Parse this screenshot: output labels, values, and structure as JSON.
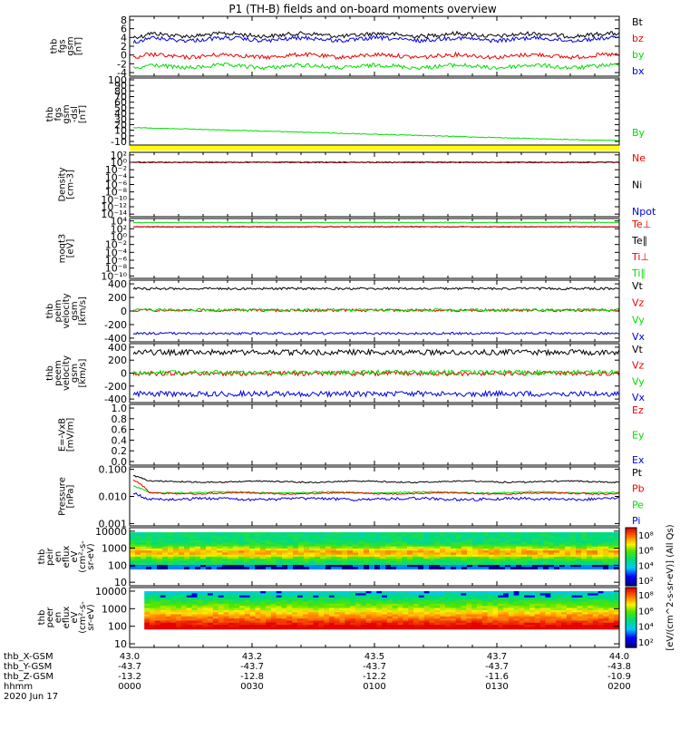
{
  "title": "P1 (TH-B) fields and on-board moments overview",
  "colors": {
    "black": "#000000",
    "red": "#ee0000",
    "green": "#00dd00",
    "blue": "#0000dd",
    "yellow": "#ffff00",
    "dark_red": "#880000"
  },
  "chart_data": [
    {
      "type": "line",
      "panel": "fgs",
      "ylabel": [
        "thb",
        "fgs",
        "gsm",
        "[nT]"
      ],
      "yticks": [
        "8",
        "6",
        "4",
        "2",
        "0",
        "-2",
        "-4"
      ],
      "ylim": [
        -4,
        8
      ],
      "series": [
        {
          "name": "Bt",
          "color": "black",
          "level": 4.6
        },
        {
          "name": "bz",
          "color": "red",
          "level": -0.2
        },
        {
          "name": "by",
          "color": "green",
          "level": -2.6
        },
        {
          "name": "bx",
          "color": "blue",
          "level": 3.6
        }
      ]
    },
    {
      "type": "line",
      "panel": "fgs-dsl",
      "ylabel": [
        "thb",
        "fgs",
        "gsm",
        "-dsl",
        "[nT]"
      ],
      "yticks": [
        "100",
        "90",
        "80",
        "70",
        "60",
        "50",
        "40",
        "30",
        "20",
        "10",
        "0",
        "-10"
      ],
      "ylim": [
        -10,
        100
      ],
      "series": [
        {
          "name": "By",
          "color": "green",
          "start": 15,
          "end": -8
        }
      ],
      "bar_color": "yellow"
    },
    {
      "type": "line",
      "panel": "density",
      "ylabel": [
        "Density",
        "[cm-3]"
      ],
      "yticks": [
        "10²",
        "10⁰",
        "10⁻²",
        "10⁻⁴",
        "10⁻⁶",
        "10⁻⁸",
        "10⁻¹⁰",
        "10⁻¹²",
        "10⁻¹⁴"
      ],
      "ylim_log": [
        -14,
        2
      ],
      "series": [
        {
          "name": "Ne",
          "color": "red",
          "log_level": 0
        },
        {
          "name": "Ni",
          "color": "black",
          "log_level": 0
        },
        {
          "name": "Npot",
          "color": "blue"
        }
      ]
    },
    {
      "type": "line",
      "panel": "temperature",
      "ylabel": [
        "moqt3",
        "[eV]"
      ],
      "yticks": [
        "10⁴",
        "10²",
        "10⁰",
        "10⁻²",
        "10⁻⁴",
        "10⁻⁶",
        "10⁻⁸",
        "10⁻¹⁰"
      ],
      "ylim_log": [
        -10,
        4
      ],
      "series": [
        {
          "name": "Te⊥",
          "color": "red",
          "log_level": 2.5
        },
        {
          "name": "Te∥",
          "color": "black",
          "log_level": 2.5
        },
        {
          "name": "Ti⊥",
          "color": "red",
          "log_level": 3.6
        },
        {
          "name": "Ti∥",
          "color": "green",
          "log_level": 3.6
        }
      ]
    },
    {
      "type": "line",
      "panel": "ion-velocity",
      "ylabel": [
        "thb",
        "peim",
        "velocity",
        "gsm",
        "[km/s]"
      ],
      "yticks": [
        "400",
        "200",
        "0",
        "-200",
        "-400"
      ],
      "ylim": [
        -400,
        400
      ],
      "series": [
        {
          "name": "Vt",
          "color": "black",
          "level": 330
        },
        {
          "name": "Vz",
          "color": "red",
          "level": 10
        },
        {
          "name": "Vy",
          "color": "green",
          "level": 15
        },
        {
          "name": "Vx",
          "color": "blue",
          "level": -330
        }
      ]
    },
    {
      "type": "line",
      "panel": "electron-velocity",
      "ylabel": [
        "thb",
        "peem",
        "velocity",
        "gsm",
        "[km/s]"
      ],
      "yticks": [
        "400",
        "200",
        "0",
        "-200",
        "-400"
      ],
      "ylim": [
        -400,
        400
      ],
      "series": [
        {
          "name": "Vt",
          "color": "black",
          "level": 320
        },
        {
          "name": "Vz",
          "color": "red",
          "level": -5
        },
        {
          "name": "Vy",
          "color": "green",
          "level": 10
        },
        {
          "name": "Vx",
          "color": "blue",
          "level": -320
        }
      ]
    },
    {
      "type": "line",
      "panel": "efield",
      "ylabel": [
        "E=-VxB",
        "[mV/m]"
      ],
      "yticks": [
        "1.0",
        "0.8",
        "0.6",
        "0.4",
        "0.2",
        "0.0"
      ],
      "ylim": [
        0,
        1
      ],
      "series": [
        {
          "name": "Ez",
          "color": "red"
        },
        {
          "name": "Ey",
          "color": "green"
        },
        {
          "name": "Ex",
          "color": "blue"
        }
      ]
    },
    {
      "type": "line",
      "panel": "pressure",
      "ylabel": [
        "Pressure",
        "[nPa]"
      ],
      "yticks": [
        "0.100",
        "0.010",
        "0.001"
      ],
      "ylim_log": [
        -3,
        -1
      ],
      "series": [
        {
          "name": "Pt",
          "color": "black",
          "value": 0.035
        },
        {
          "name": "Pb",
          "color": "red",
          "value": 0.013
        },
        {
          "name": "Pe",
          "color": "green",
          "value": 0.014
        },
        {
          "name": "Pi",
          "color": "blue",
          "value": 0.008
        }
      ]
    },
    {
      "type": "heatmap",
      "panel": "ion-spectrogram",
      "ylabel": [
        "thb",
        "peir",
        "en",
        "eflux",
        "eV",
        "(cm²-s-",
        "sr-eV)"
      ],
      "yticks": [
        "10000",
        "1000",
        "100",
        "10"
      ],
      "colorbar_ticks": [
        "10⁸",
        "10⁶",
        "10⁴",
        "10²"
      ]
    },
    {
      "type": "heatmap",
      "panel": "electron-spectrogram",
      "ylabel": [
        "thb",
        "peer",
        "en",
        "eflux",
        "eV",
        "(cm²-s-",
        "sr-eV)"
      ],
      "yticks": [
        "10000",
        "1000",
        "100",
        "10"
      ],
      "colorbar_ticks": [
        "10⁸",
        "10⁶",
        "10⁴",
        "10²"
      ]
    }
  ],
  "colorbar_label": "[eV/(cm^2-s-sr-eV)] (All Qs)",
  "xaxis": {
    "row_labels": [
      "thb_X-GSM",
      "thb_Y-GSM",
      "thb_Z-GSM",
      "hhmm",
      "2020 Jun 17"
    ],
    "ticks": [
      {
        "x": "43.0",
        "y": "-43.7",
        "z": "-13.2",
        "t": "0000"
      },
      {
        "x": "43.2",
        "y": "-43.7",
        "z": "-12.8",
        "t": "0030"
      },
      {
        "x": "43.5",
        "y": "-43.7",
        "z": "-12.2",
        "t": "0100"
      },
      {
        "x": "43.7",
        "y": "-43.7",
        "z": "-11.6",
        "t": "0130"
      },
      {
        "x": "44.0",
        "y": "-43.8",
        "z": "-10.9",
        "t": "0200"
      }
    ]
  }
}
